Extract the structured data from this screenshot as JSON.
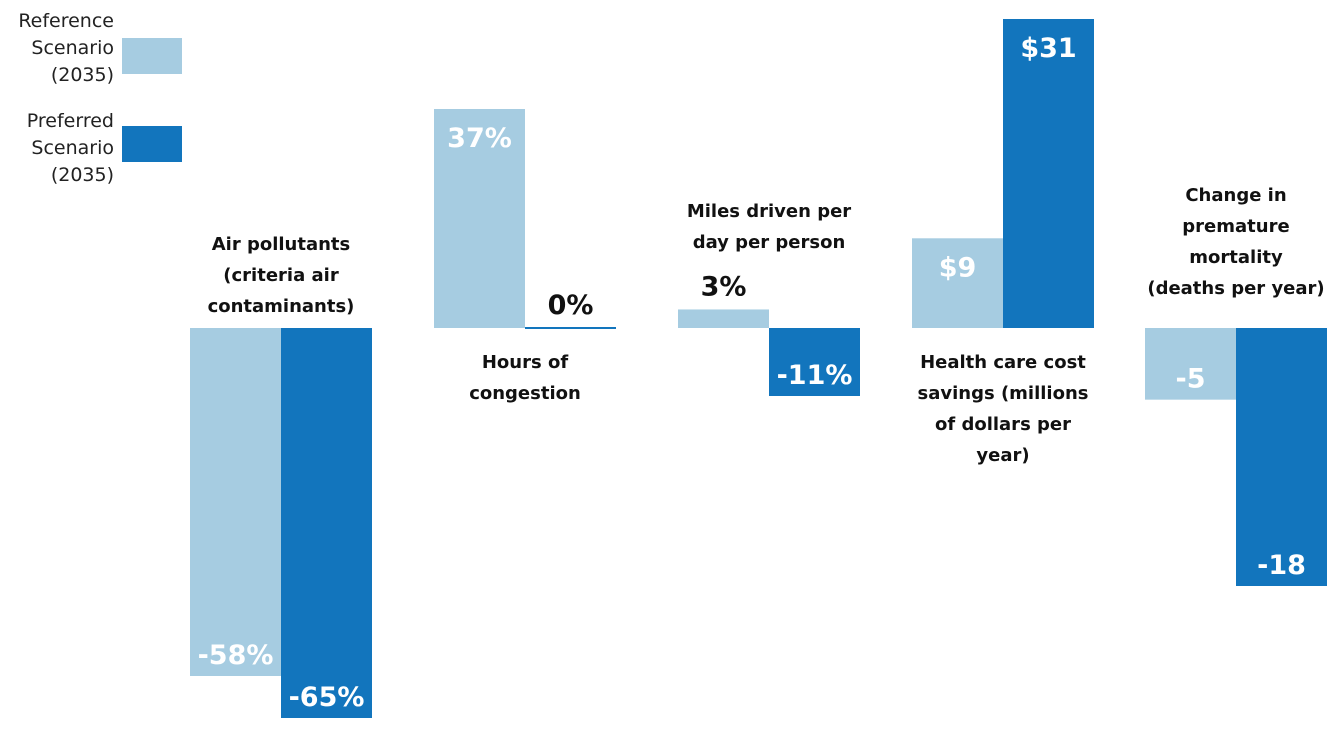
{
  "colors": {
    "reference": "#a6cce1",
    "preferred": "#1275bd"
  },
  "legend": [
    {
      "lines": [
        "Reference",
        "Scenario",
        "(2035)"
      ],
      "color": "#a6cce1"
    },
    {
      "lines": [
        "Preferred",
        "Scenario",
        "(2035)"
      ],
      "color": "#1275bd"
    }
  ],
  "chart_data": {
    "type": "bar",
    "series": [
      {
        "name": "Reference Scenario (2035)",
        "values": [
          -58,
          37,
          3,
          9,
          -5
        ]
      },
      {
        "name": "Preferred Scenario (2035)",
        "values": [
          -65,
          0,
          -11,
          31,
          -18
        ]
      }
    ],
    "categories": [
      "Air pollutants (criteria air contaminants)",
      "Hours of congestion",
      "Miles driven per day per person",
      "Health care cost savings (millions of dollars per year)",
      "Change in premature mortality (deaths per year)"
    ],
    "groups": [
      {
        "label_lines": [
          "Air pollutants",
          "(criteria air",
          "contaminants)"
        ],
        "ref": {
          "value": -58,
          "label": "-58%"
        },
        "pref": {
          "value": -65,
          "label": "-65%"
        }
      },
      {
        "label_lines": [
          "Hours of",
          "congestion"
        ],
        "ref": {
          "value": 37,
          "label": "37%"
        },
        "pref": {
          "value": 0,
          "label": "0%"
        }
      },
      {
        "label_lines": [
          "Miles driven per",
          "day per person"
        ],
        "ref": {
          "value": 3,
          "label": "3%"
        },
        "pref": {
          "value": -11,
          "label": "-11%"
        }
      },
      {
        "label_lines": [
          "Health care cost",
          "savings (millions",
          "of dollars per",
          "year)"
        ],
        "ref": {
          "value": 9,
          "label": "$9"
        },
        "pref": {
          "value": 31,
          "label": "$31"
        }
      },
      {
        "label_lines": [
          "Change in",
          "premature",
          "mortality",
          "(deaths per year)"
        ],
        "ref": {
          "value": -5,
          "label": "-5"
        },
        "pref": {
          "value": -18,
          "label": "-18"
        }
      }
    ]
  }
}
